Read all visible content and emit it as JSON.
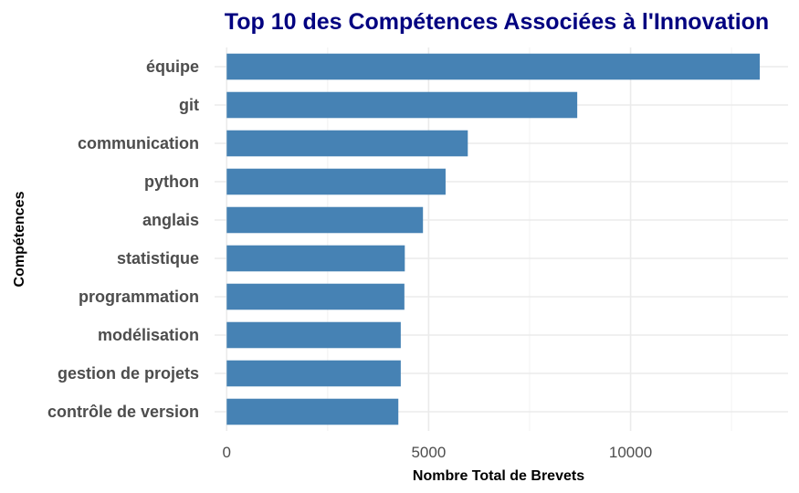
{
  "chart_data": {
    "type": "bar",
    "orientation": "horizontal",
    "title": "Top 10 des Compétences Associées à l'Innovation",
    "xlabel": "Nombre Total de Brevets",
    "ylabel": "Compétences",
    "categories": [
      "équipe",
      "git",
      "communication",
      "python",
      "anglais",
      "statistique",
      "programmation",
      "modélisation",
      "gestion de projets",
      "contrôle de version"
    ],
    "values": [
      13200,
      8680,
      5970,
      5420,
      4860,
      4410,
      4400,
      4310,
      4310,
      4250
    ],
    "xlim": [
      -300,
      13900
    ],
    "xticks": [
      0,
      5000,
      10000
    ],
    "xtick_labels": [
      "0",
      "5000",
      "10000"
    ],
    "grid": true,
    "legend": "none"
  },
  "colors": {
    "bar": "#4682B4",
    "title": "#000080",
    "grid_major": "#ebebeb",
    "grid_minor": "#f2f2f2"
  }
}
